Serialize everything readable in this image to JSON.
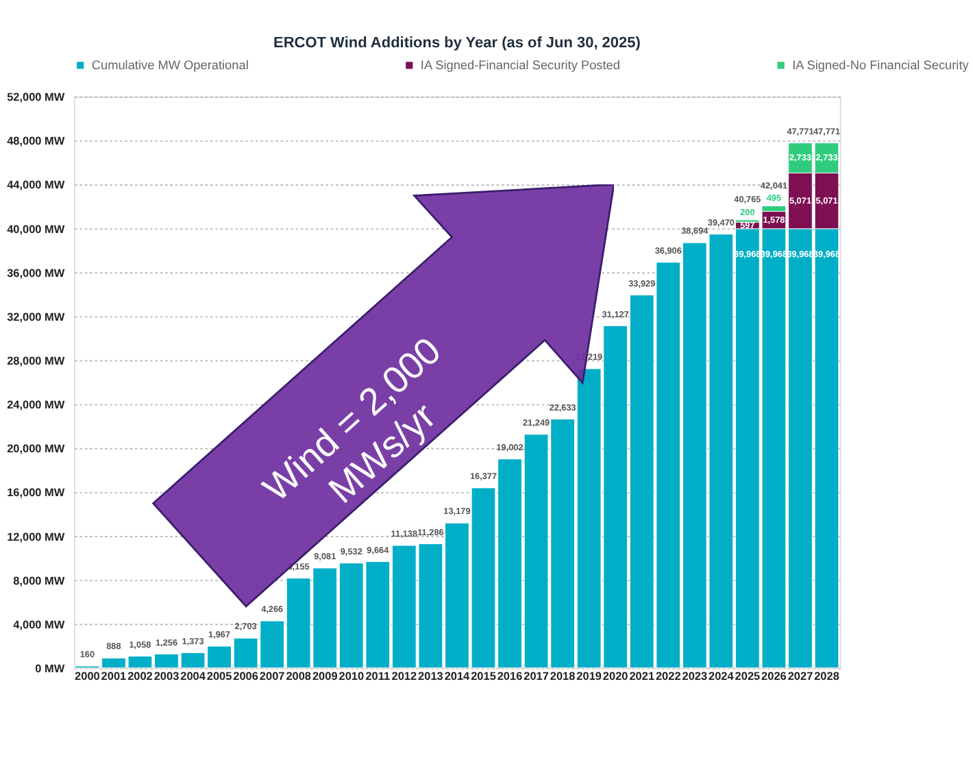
{
  "chart_data": {
    "type": "bar",
    "title": "ERCOT Wind Additions by Year (as of Jun 30, 2025)",
    "categories": [
      "2000",
      "2001",
      "2002",
      "2003",
      "2004",
      "2005",
      "2006",
      "2007",
      "2008",
      "2009",
      "2010",
      "2011",
      "2012",
      "2013",
      "2014",
      "2015",
      "2016",
      "2017",
      "2018",
      "2019",
      "2020",
      "2021",
      "2022",
      "2023",
      "2024",
      "2025",
      "2026",
      "2027",
      "2028"
    ],
    "stacked": true,
    "series": [
      {
        "name": "Cumulative MW Operational",
        "color": "#00aec7",
        "values": [
          160,
          888,
          1058,
          1256,
          1373,
          1967,
          2703,
          4266,
          8155,
          9081,
          9532,
          9664,
          11138,
          11286,
          13179,
          16377,
          19002,
          21249,
          22633,
          27219,
          31127,
          33929,
          36906,
          38694,
          39470,
          39968,
          39968,
          39968,
          39968
        ],
        "value_labels": [
          "160",
          "888",
          "1,058",
          "1,256",
          "1,373",
          "1,967",
          "2,703",
          "4,266",
          "8,155",
          "9,081",
          "9,532",
          "9,664",
          "11,138",
          "11,286",
          "13,179",
          "16,377",
          "19,002",
          "21,249",
          "22,633",
          "27,219",
          "31,127",
          "33,929",
          "36,906",
          "38,694",
          "39,470",
          "39,968",
          "39,968",
          "39,968",
          "39,968"
        ]
      },
      {
        "name": "IA Signed-Financial Security Posted",
        "color": "#7d0f52",
        "values": [
          null,
          null,
          null,
          null,
          null,
          null,
          null,
          null,
          null,
          null,
          null,
          null,
          null,
          null,
          null,
          null,
          null,
          null,
          null,
          null,
          null,
          null,
          null,
          null,
          null,
          597,
          1578,
          5071,
          5071
        ],
        "value_labels": [
          null,
          null,
          null,
          null,
          null,
          null,
          null,
          null,
          null,
          null,
          null,
          null,
          null,
          null,
          null,
          null,
          null,
          null,
          null,
          null,
          null,
          null,
          null,
          null,
          null,
          "597",
          "1,578",
          "5,071",
          "5,071"
        ]
      },
      {
        "name": "IA Signed-No Financial Security",
        "color": "#2fcc7e",
        "values": [
          null,
          null,
          null,
          null,
          null,
          null,
          null,
          null,
          null,
          null,
          null,
          null,
          null,
          null,
          null,
          null,
          null,
          null,
          null,
          null,
          null,
          null,
          null,
          null,
          null,
          200,
          495,
          2733,
          2733
        ],
        "value_labels": [
          null,
          null,
          null,
          null,
          null,
          null,
          null,
          null,
          null,
          null,
          null,
          null,
          null,
          null,
          null,
          null,
          null,
          null,
          null,
          null,
          null,
          null,
          null,
          null,
          null,
          "200",
          "495",
          "2,733",
          "2,733"
        ]
      }
    ],
    "totals": [
      null,
      null,
      null,
      null,
      null,
      null,
      null,
      null,
      null,
      null,
      null,
      null,
      null,
      null,
      null,
      null,
      null,
      null,
      null,
      null,
      null,
      null,
      null,
      null,
      null,
      "40,765",
      "42,041",
      "47,771",
      "47,771"
    ],
    "ylim": [
      0,
      52000
    ],
    "yticks": [
      {
        "value": 0,
        "label": "0  MW"
      },
      {
        "value": 4000,
        "label": "4,000  MW"
      },
      {
        "value": 8000,
        "label": "8,000  MW"
      },
      {
        "value": 12000,
        "label": "12,000  MW"
      },
      {
        "value": 16000,
        "label": "16,000  MW"
      },
      {
        "value": 20000,
        "label": "20,000  MW"
      },
      {
        "value": 24000,
        "label": "24,000  MW"
      },
      {
        "value": 28000,
        "label": "28,000  MW"
      },
      {
        "value": 32000,
        "label": "32,000  MW"
      },
      {
        "value": 36000,
        "label": "36,000  MW"
      },
      {
        "value": 40000,
        "label": "40,000  MW"
      },
      {
        "value": 44000,
        "label": "44,000  MW"
      },
      {
        "value": 48000,
        "label": "48,000  MW"
      },
      {
        "value": 52000,
        "label": "52,000  MW"
      }
    ],
    "data_labels": true,
    "grid": "y",
    "legend": "top",
    "annotations": [
      "Wind = 2,000 MWs/yr"
    ]
  }
}
